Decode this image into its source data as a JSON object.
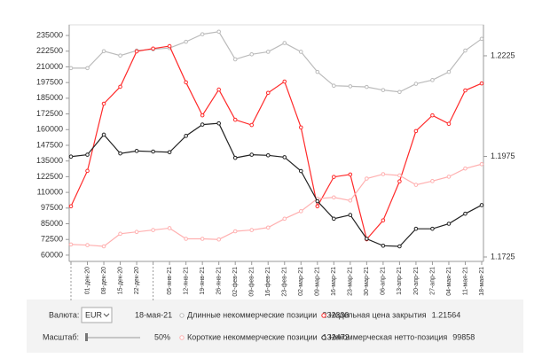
{
  "chart_data": {
    "type": "line",
    "categories": [
      null,
      "01-дек-20",
      "08-дек-20",
      "15-дек-20",
      "22-дек-20",
      null,
      "05-янв-21",
      "12-янв-21",
      "19-янв-21",
      "26-янв-21",
      "02-фев-21",
      "09-фев-21",
      "16-фев-21",
      "23-фев-21",
      "02-мар-21",
      "09-мар-21",
      "16-мар-21",
      "23-мар-21",
      "30-мар-21",
      "06-апр-21",
      "13-апр-21",
      "20-апр-21",
      "27-апр-21",
      "04-мая-21",
      "11-мая-21",
      "18-мая-21"
    ],
    "ylim": [
      55000,
      243500
    ],
    "yticks": [
      60000,
      72500,
      85000,
      97500,
      110000,
      122500,
      135000,
      147500,
      160000,
      172500,
      185000,
      197500,
      210000,
      222500,
      235000
    ],
    "y2lim": [
      1.1714,
      1.2302
    ],
    "y2ticks": [
      1.1725,
      1.1975,
      1.2225
    ],
    "series": [
      {
        "name": "Длинные некоммерческие позиции",
        "color": "#bbbbbb",
        "values": [
          209000,
          209000,
          222500,
          219000,
          223000,
          224000,
          225000,
          230000,
          236000,
          238000,
          216000,
          220000,
          222000,
          229000,
          222000,
          206000,
          195000,
          194500,
          194000,
          191500,
          190000,
          196500,
          199500,
          206000,
          223000,
          232330
        ]
      },
      {
        "name": "Недельная цена закрытия",
        "color": "#ff2a2a",
        "axis": "y2",
        "values": [
          1.1851,
          1.1939,
          1.2106,
          1.2148,
          1.2236,
          1.2243,
          1.2249,
          1.2159,
          1.2077,
          1.2141,
          1.2066,
          1.2053,
          1.2133,
          1.2161,
          1.2047,
          1.1851,
          1.1924,
          1.193,
          1.1769,
          1.1816,
          1.1913,
          1.2038,
          1.2077,
          1.2056,
          1.2139,
          1.21564
        ]
      },
      {
        "name": "Короткие некоммерческие позиции",
        "color": "#ffb0b0",
        "values": [
          68500,
          68000,
          67000,
          77000,
          78500,
          80000,
          81500,
          73000,
          73000,
          72500,
          79000,
          80000,
          82000,
          89000,
          95000,
          105000,
          106000,
          103500,
          121000,
          124500,
          123500,
          116000,
          119000,
          122500,
          129000,
          132472
        ]
      },
      {
        "name": "Некоммерческая нетто-позиция",
        "color": "#222222",
        "values": [
          138500,
          140000,
          156000,
          141000,
          143000,
          142500,
          142000,
          155000,
          164000,
          165000,
          137500,
          140000,
          139500,
          138000,
          127000,
          103000,
          89000,
          92000,
          73000,
          67500,
          67000,
          81000,
          81000,
          85000,
          93000,
          99858
        ]
      }
    ]
  },
  "ui": {
    "currency_label": "Валюта:",
    "currency": "EUR",
    "date": "18-мая-21",
    "scale_label": "Масштаб:",
    "scale_value": "50%"
  }
}
